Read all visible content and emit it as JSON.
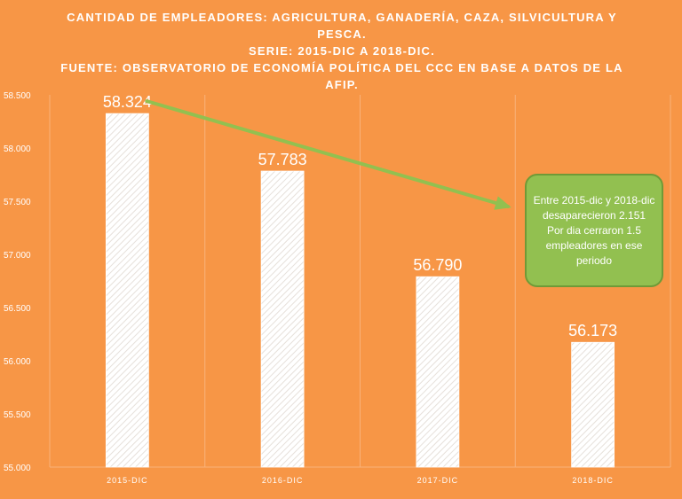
{
  "title_lines": [
    "CANTIDAD DE EMPLEADORES: AGRICULTURA,  GANADERÍA, CAZA, SILVICULTURA  Y PESCA.",
    "SERIE: 2015-DIC  A 2018-DIC.",
    "FUENTE: OBSERVATORIO DE ECONOMÍA POLÍTICA DEL CCC EN BASE A DATOS DE LA AFIP."
  ],
  "callout_lines": [
    "Entre 2015-dic y 2018-dic desaparecieron 2.151",
    "Por dia  cerraron 1.5 empleadores en ese periodo"
  ],
  "colors": {
    "background": "#f79646",
    "bar": "#ffffff",
    "gridline": "#f9b27a",
    "arrow": "#92c050",
    "callout": "#92c050"
  },
  "chart_data": {
    "type": "bar",
    "categories": [
      "2015-DIC",
      "2016-DIC",
      "2017-DIC",
      "2018-DIC"
    ],
    "values": [
      58324,
      57783,
      56790,
      56173
    ],
    "value_labels": [
      "58.324",
      "57.783",
      "56.790",
      "56.173"
    ],
    "ylim": [
      55000,
      58500
    ],
    "yticks": [
      55000,
      55500,
      56000,
      56500,
      57000,
      57500,
      58000,
      58500
    ],
    "ytick_labels": [
      "55.000",
      "55.500",
      "56.000",
      "56.500",
      "57.000",
      "57.500",
      "58.000",
      "58.500"
    ],
    "bar_pattern": "diagonal-hatch",
    "grid": "vertical-category-separators",
    "annotation_arrow": {
      "from_category": "2015-DIC",
      "to": "callout"
    }
  }
}
